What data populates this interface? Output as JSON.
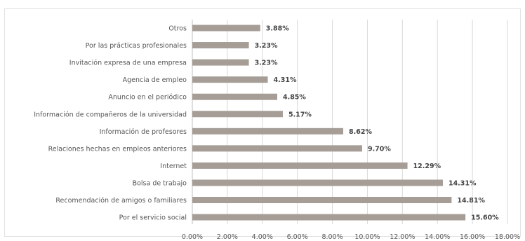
{
  "chart_data": {
    "type": "bar",
    "orientation": "horizontal",
    "categories": [
      "Otros",
      "Por las prácticas profesionales",
      "Invitación expresa de una empresa",
      "Agencia de empleo",
      "Anuncio en el periódico",
      "Información de compañeros de la universidad",
      "Información de profesores",
      "Relaciones hechas en empleos anteriores",
      "Internet",
      "Bolsa de trabajo",
      "Recomendación de amigos o familiares",
      "Por el servicio social"
    ],
    "values": [
      3.88,
      3.23,
      3.23,
      4.31,
      4.85,
      5.17,
      8.62,
      9.7,
      12.29,
      14.31,
      14.81,
      15.6
    ],
    "value_labels": [
      "3.88%",
      "3.23%",
      "3.23%",
      "4.31%",
      "4.85%",
      "5.17%",
      "8.62%",
      "9.70%",
      "12.29%",
      "14.31%",
      "14.81%",
      "15.60%"
    ],
    "x_ticks": [
      "0.00%",
      "2.00%",
      "4.00%",
      "6.00%",
      "8.00%",
      "10.00%",
      "12.00%",
      "14.00%",
      "16.00%",
      "18.00%"
    ],
    "xlim": [
      0,
      18
    ],
    "grid": true,
    "bar_color": "#a59d96",
    "title": "",
    "xlabel": "",
    "ylabel": ""
  }
}
